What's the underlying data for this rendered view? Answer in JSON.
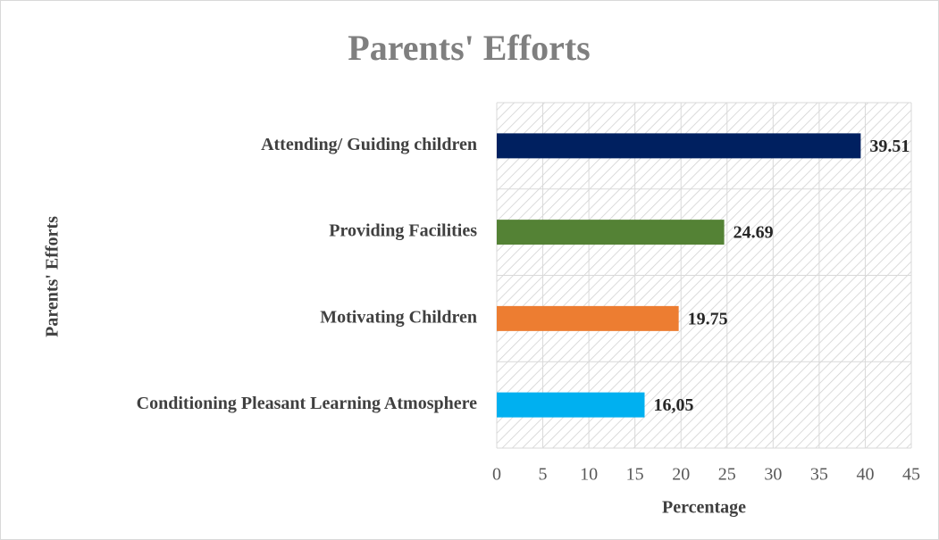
{
  "chart_data": {
    "type": "bar",
    "orientation": "horizontal",
    "title": "Parents' Efforts",
    "y_label": "Parents' Efforts",
    "x_label": "Percentage",
    "categories": [
      "Attending/ Guiding children",
      "Providing Facilities",
      "Motivating Children",
      "Conditioning Pleasant Learning Atmosphere"
    ],
    "values": [
      39.51,
      24.69,
      19.75,
      16.05
    ],
    "value_labels": [
      "39.51",
      "24.69",
      "19.75",
      "16,05"
    ],
    "colors": [
      "#002060",
      "#548235",
      "#ed7d31",
      "#00b0f0"
    ],
    "xlim": [
      0,
      45
    ],
    "xticks": [
      0,
      5,
      10,
      15,
      20,
      25,
      30,
      35,
      40,
      45
    ],
    "grid": true
  }
}
